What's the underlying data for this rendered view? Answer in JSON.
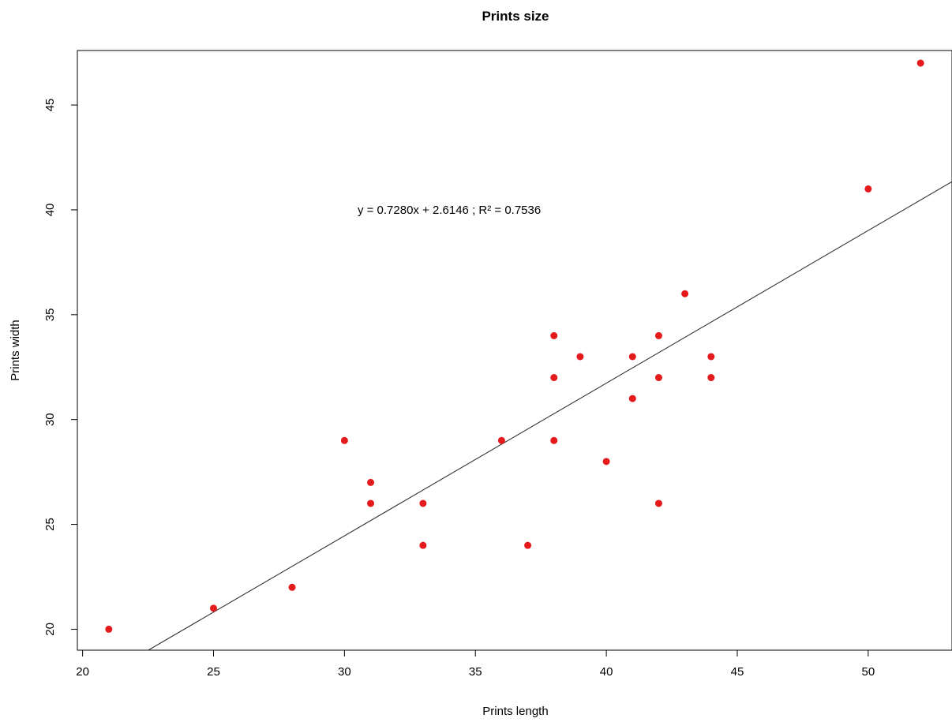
{
  "chart_data": {
    "type": "scatter",
    "title": "Prints size",
    "xlabel": "Prints length",
    "ylabel": "Prints width",
    "xlim": [
      19.8,
      53.2
    ],
    "ylim": [
      19.0,
      47.6
    ],
    "xticks": [
      20,
      25,
      30,
      35,
      40,
      45,
      50
    ],
    "yticks": [
      20,
      25,
      30,
      35,
      40,
      45
    ],
    "point_color": "#e41a1c",
    "line_color": "#333333",
    "regression": {
      "slope": 0.728,
      "intercept": 2.6146
    },
    "annotation": {
      "text": "y = 0.7280x + 2.6146 ; R² = 0.7536",
      "x": 30.5,
      "y": 40
    },
    "points": [
      {
        "x": 21,
        "y": 20
      },
      {
        "x": 25,
        "y": 21
      },
      {
        "x": 28,
        "y": 22
      },
      {
        "x": 30,
        "y": 29
      },
      {
        "x": 31,
        "y": 27
      },
      {
        "x": 31,
        "y": 26
      },
      {
        "x": 33,
        "y": 26
      },
      {
        "x": 33,
        "y": 24
      },
      {
        "x": 36,
        "y": 29
      },
      {
        "x": 37,
        "y": 24
      },
      {
        "x": 38,
        "y": 34
      },
      {
        "x": 38,
        "y": 32
      },
      {
        "x": 38,
        "y": 29
      },
      {
        "x": 39,
        "y": 33
      },
      {
        "x": 40,
        "y": 28
      },
      {
        "x": 41,
        "y": 33
      },
      {
        "x": 41,
        "y": 31
      },
      {
        "x": 42,
        "y": 34
      },
      {
        "x": 42,
        "y": 32
      },
      {
        "x": 42,
        "y": 26
      },
      {
        "x": 43,
        "y": 36
      },
      {
        "x": 44,
        "y": 33
      },
      {
        "x": 44,
        "y": 32
      },
      {
        "x": 50,
        "y": 41
      },
      {
        "x": 52,
        "y": 47
      }
    ]
  }
}
